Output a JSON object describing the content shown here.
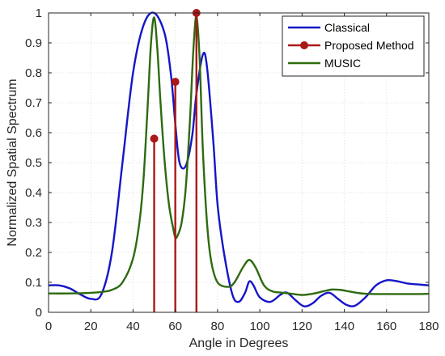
{
  "chart_data": {
    "type": "line",
    "title": "",
    "xlabel": "Angle in Degrees",
    "ylabel": "Normalized Spatial Spectrum",
    "xlim": [
      0,
      180
    ],
    "ylim": [
      0,
      1
    ],
    "xticks": [
      0,
      20,
      40,
      60,
      80,
      100,
      120,
      140,
      160,
      180
    ],
    "yticks": [
      0,
      0.1,
      0.2,
      0.3,
      0.4,
      0.5,
      0.6,
      0.7,
      0.8,
      0.9,
      1
    ],
    "xtick_labels": [
      "0",
      "20",
      "40",
      "60",
      "80",
      "100",
      "120",
      "140",
      "160",
      "180"
    ],
    "ytick_labels": [
      "0",
      "0.1",
      "0.2",
      "0.3",
      "0.4",
      "0.5",
      "0.6",
      "0.7",
      "0.8",
      "0.9",
      "1"
    ],
    "grid": true,
    "legend_position": "top-right",
    "series": [
      {
        "name": "Classical",
        "kind": "line",
        "color": "#1515c8",
        "x": [
          0,
          5,
          10,
          15,
          20,
          25,
          30,
          35,
          40,
          45,
          50,
          55,
          58,
          60,
          62,
          65,
          68,
          70,
          73,
          75,
          78,
          80,
          83,
          87,
          90,
          93,
          95,
          97,
          100,
          105,
          110,
          113,
          117,
          121,
          125,
          129,
          133,
          137,
          141,
          145,
          150,
          155,
          160,
          165,
          170,
          175,
          180
        ],
        "y": [
          0.09,
          0.09,
          0.08,
          0.06,
          0.045,
          0.06,
          0.2,
          0.5,
          0.8,
          0.96,
          1.0,
          0.93,
          0.79,
          0.63,
          0.5,
          0.49,
          0.59,
          0.73,
          0.86,
          0.82,
          0.57,
          0.36,
          0.2,
          0.06,
          0.035,
          0.065,
          0.103,
          0.09,
          0.05,
          0.035,
          0.06,
          0.065,
          0.04,
          0.02,
          0.03,
          0.055,
          0.065,
          0.045,
          0.025,
          0.022,
          0.05,
          0.09,
          0.107,
          0.104,
          0.096,
          0.093,
          0.09
        ],
        "marker": "none"
      },
      {
        "name": "Proposed Method",
        "kind": "stem",
        "color": "#aa1818",
        "marker_color": "#aa1818",
        "x": [
          50,
          60,
          70
        ],
        "y": [
          0.58,
          0.77,
          1.0
        ]
      },
      {
        "name": "MUSIC",
        "kind": "line",
        "color": "#2e6b10",
        "x": [
          0,
          10,
          20,
          25,
          30,
          35,
          40,
          43,
          45,
          47,
          48.5,
          50,
          51.5,
          53,
          55,
          57,
          59,
          60,
          61,
          63,
          65,
          67,
          68.5,
          70,
          71.5,
          73,
          75,
          77,
          80,
          85,
          88,
          92,
          95,
          98,
          102,
          106,
          110,
          115,
          120,
          125,
          130,
          134,
          138,
          142,
          146,
          150,
          155,
          160,
          165,
          170,
          175,
          180
        ],
        "y": [
          0.063,
          0.063,
          0.065,
          0.068,
          0.075,
          0.1,
          0.18,
          0.3,
          0.45,
          0.7,
          0.9,
          0.985,
          0.88,
          0.7,
          0.5,
          0.36,
          0.28,
          0.25,
          0.255,
          0.3,
          0.42,
          0.65,
          0.87,
          0.99,
          0.85,
          0.55,
          0.3,
          0.17,
          0.1,
          0.085,
          0.1,
          0.15,
          0.175,
          0.15,
          0.09,
          0.07,
          0.066,
          0.062,
          0.058,
          0.062,
          0.07,
          0.076,
          0.075,
          0.07,
          0.065,
          0.062,
          0.061,
          0.061,
          0.061,
          0.061,
          0.061,
          0.062
        ],
        "marker": "none"
      }
    ]
  }
}
